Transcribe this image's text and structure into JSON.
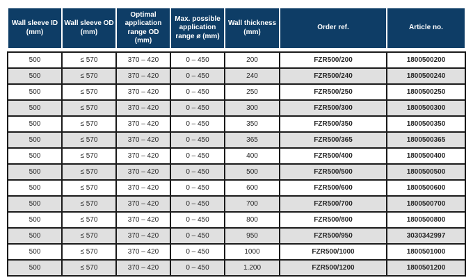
{
  "colors": {
    "header_bg": "#0e3d66",
    "header_text": "#ffffff",
    "row_bg": "#ffffff",
    "row_alt_bg": "#e0e0e0",
    "grid_line": "#1a1a1a",
    "body_text": "#262626"
  },
  "table": {
    "columns": [
      {
        "key": "wall-sleeve-id",
        "label": "Wall sleeve ID\n(mm)"
      },
      {
        "key": "wall-sleeve-od",
        "label": "Wall sleeve OD\n(mm)"
      },
      {
        "key": "optimal-application-range-od",
        "label": "Optimal\napplication\nrange OD\n(mm)"
      },
      {
        "key": "max-possible-application-range",
        "label": "Max. possible\napplication\nrange ø (mm)"
      },
      {
        "key": "wall-thickness",
        "label": "Wall thickness\n(mm)"
      },
      {
        "key": "order-ref",
        "label": "Order ref."
      },
      {
        "key": "article-no",
        "label": "Article no."
      }
    ],
    "rows": [
      [
        "500",
        "≤ 570",
        "370 – 420",
        "0 – 450",
        "200",
        "FZR500/200",
        "1800500200"
      ],
      [
        "500",
        "≤ 570",
        "370 – 420",
        "0 – 450",
        "240",
        "FZR500/240",
        "1800500240"
      ],
      [
        "500",
        "≤ 570",
        "370 – 420",
        "0 – 450",
        "250",
        "FZR500/250",
        "1800500250"
      ],
      [
        "500",
        "≤ 570",
        "370 – 420",
        "0 – 450",
        "300",
        "FZR500/300",
        "1800500300"
      ],
      [
        "500",
        "≤ 570",
        "370 – 420",
        "0 – 450",
        "350",
        "FZR500/350",
        "1800500350"
      ],
      [
        "500",
        "≤ 570",
        "370 – 420",
        "0 – 450",
        "365",
        "FZR500/365",
        "1800500365"
      ],
      [
        "500",
        "≤ 570",
        "370 – 420",
        "0 – 450",
        "400",
        "FZR500/400",
        "1800500400"
      ],
      [
        "500",
        "≤ 570",
        "370 – 420",
        "0 – 450",
        "500",
        "FZR500/500",
        "1800500500"
      ],
      [
        "500",
        "≤ 570",
        "370 – 420",
        "0 – 450",
        "600",
        "FZR500/600",
        "1800500600"
      ],
      [
        "500",
        "≤ 570",
        "370 – 420",
        "0 – 450",
        "700",
        "FZR500/700",
        "1800500700"
      ],
      [
        "500",
        "≤ 570",
        "370 – 420",
        "0 – 450",
        "800",
        "FZR500/800",
        "1800500800"
      ],
      [
        "500",
        "≤ 570",
        "370 – 420",
        "0 – 450",
        "950",
        "FZR500/950",
        "3030342997"
      ],
      [
        "500",
        "≤ 570",
        "370 – 420",
        "0 – 450",
        "1000",
        "FZR500/1000",
        "1800501000"
      ],
      [
        "500",
        "≤ 570",
        "370 – 420",
        "0 – 450",
        "1.200",
        "FZR500/1200",
        "1800501200"
      ]
    ]
  }
}
